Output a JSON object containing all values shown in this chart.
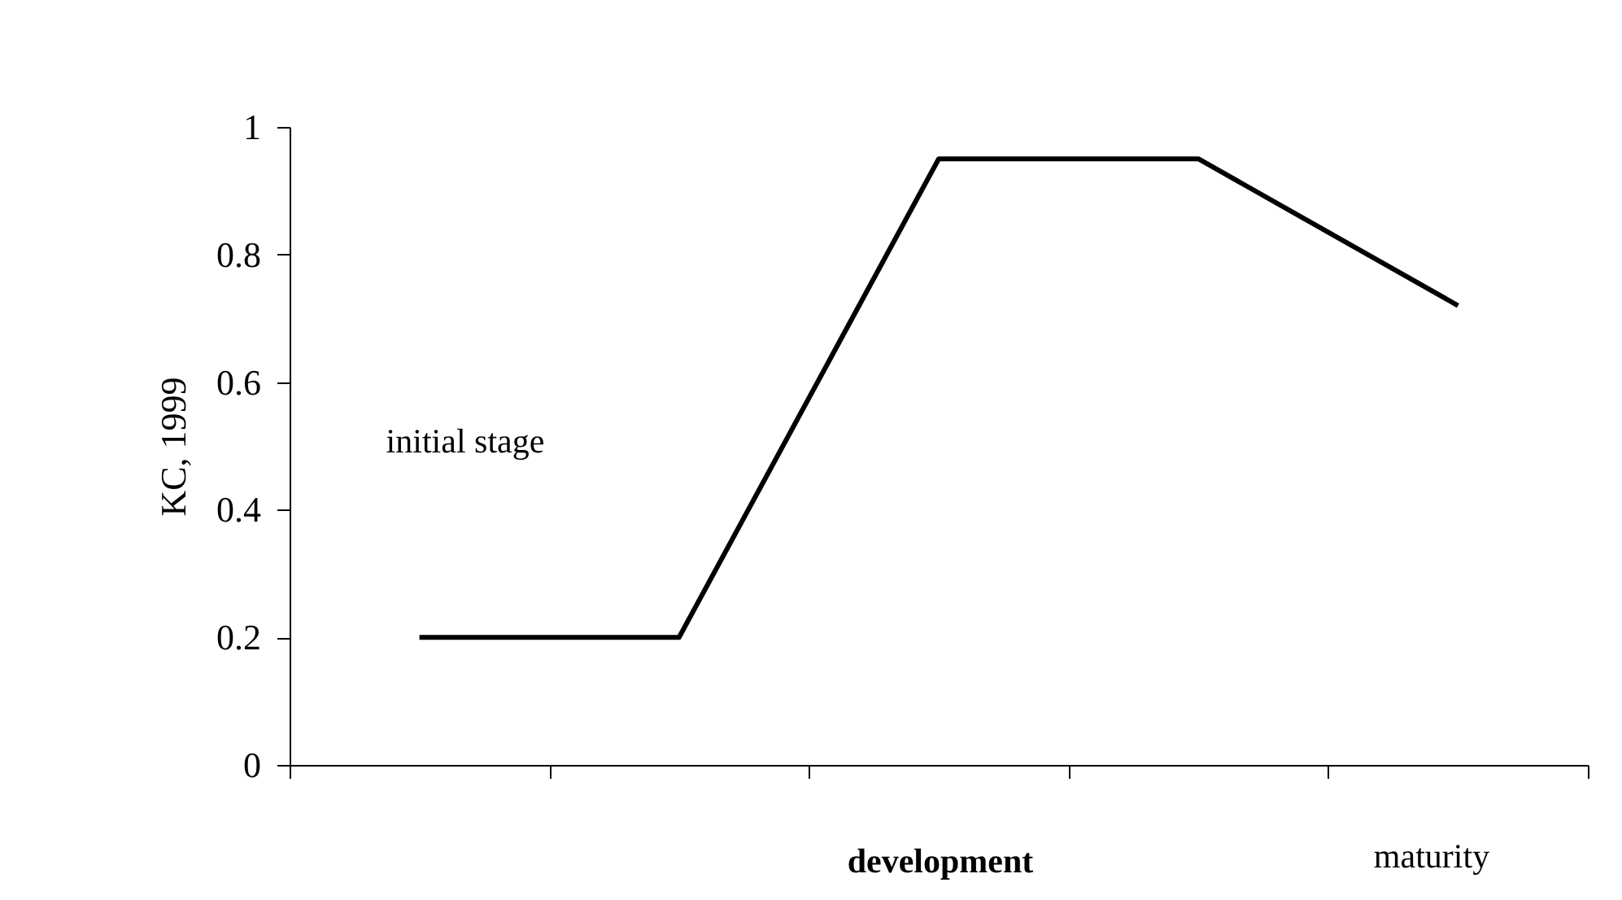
{
  "chart_data": {
    "type": "line",
    "ylabel": "KC, 1999",
    "categories": [
      null,
      null,
      null,
      null,
      null
    ],
    "series": [
      {
        "color": "#000000",
        "values": [
          0.2,
          0.2,
          0.95,
          0.95,
          0.72
        ]
      }
    ],
    "ylim": [
      0,
      1
    ],
    "yticks": [
      0,
      0.2,
      0.4,
      0.6,
      0.8,
      1
    ],
    "grid": false,
    "marker": "none",
    "line_style": "solid",
    "tick_labels": "y",
    "annotations": [
      "initial stage",
      "development",
      "maturity"
    ]
  }
}
